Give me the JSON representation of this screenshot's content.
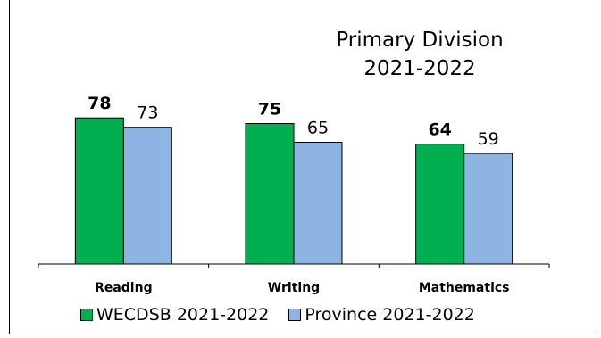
{
  "chart_data": {
    "type": "bar",
    "title": "Primary Division",
    "subtitle": "2021-2022",
    "categories": [
      "Reading",
      "Writing",
      "Mathematics"
    ],
    "series": [
      {
        "name": "WECDSB 2021-2022",
        "values": [
          78,
          75,
          64
        ],
        "color": "#00b050",
        "label_bold": true
      },
      {
        "name": "Province 2021-2022",
        "values": [
          73,
          65,
          59
        ],
        "color": "#8eb4e3",
        "label_bold": false
      }
    ],
    "ylim": [
      0,
      100
    ],
    "grid": false,
    "legend_position": "bottom"
  }
}
